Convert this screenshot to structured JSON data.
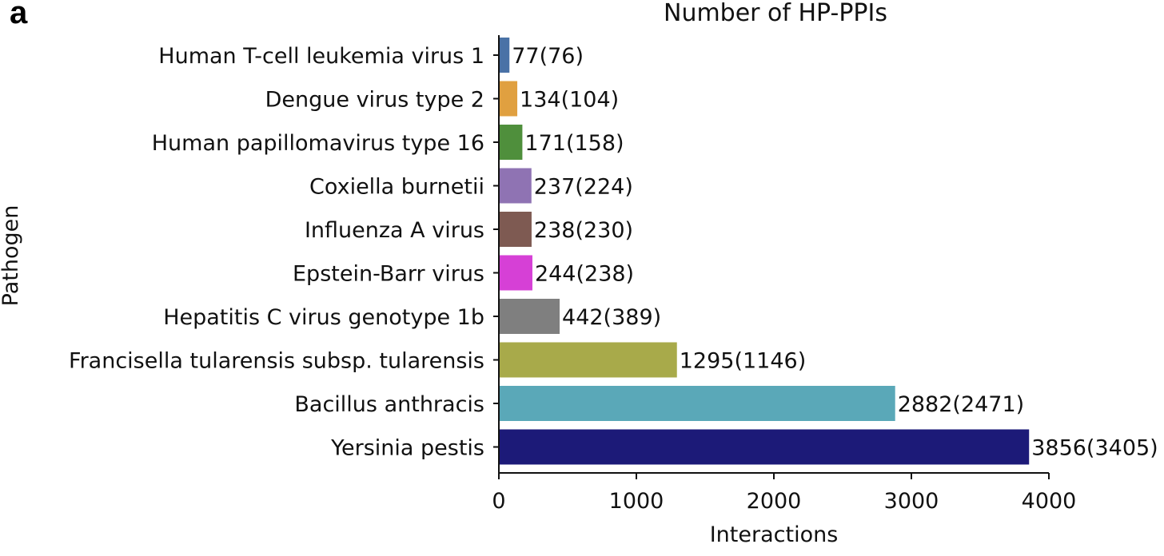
{
  "panel_label": "a",
  "chart_data": {
    "type": "bar",
    "orientation": "horizontal",
    "title": "Number of HP-PPIs",
    "xlabel": "Interactions",
    "ylabel": "Pathogen",
    "xlim": [
      0,
      4000
    ],
    "xticks": [
      0,
      1000,
      2000,
      3000,
      4000
    ],
    "grid": false,
    "categories": [
      "Human T-cell leukemia virus 1",
      "Dengue virus type 2",
      "Human papillomavirus type 16",
      "Coxiella burnetii",
      "Influenza A virus",
      "Epstein-Barr virus",
      "Hepatitis C virus genotype 1b",
      "Francisella tularensis subsp. tularensis",
      "Bacillus anthracis",
      "Yersinia pestis"
    ],
    "values": [
      77,
      134,
      171,
      237,
      238,
      244,
      442,
      1295,
      2882,
      3856
    ],
    "secondary_values": [
      76,
      104,
      158,
      224,
      230,
      238,
      389,
      1146,
      2471,
      3405
    ],
    "data_labels": [
      "77(76)",
      "134(104)",
      "171(158)",
      "237(224)",
      "238(230)",
      "244(238)",
      "442(389)",
      "1295(1146)",
      "2882(2471)",
      "3856(3405)"
    ],
    "colors": [
      "#4a72a6",
      "#e0a040",
      "#4f8f3c",
      "#8f73b3",
      "#7e5a52",
      "#d640d6",
      "#7f7f7f",
      "#a8aa4a",
      "#5aa8b8",
      "#1c1a78"
    ]
  }
}
